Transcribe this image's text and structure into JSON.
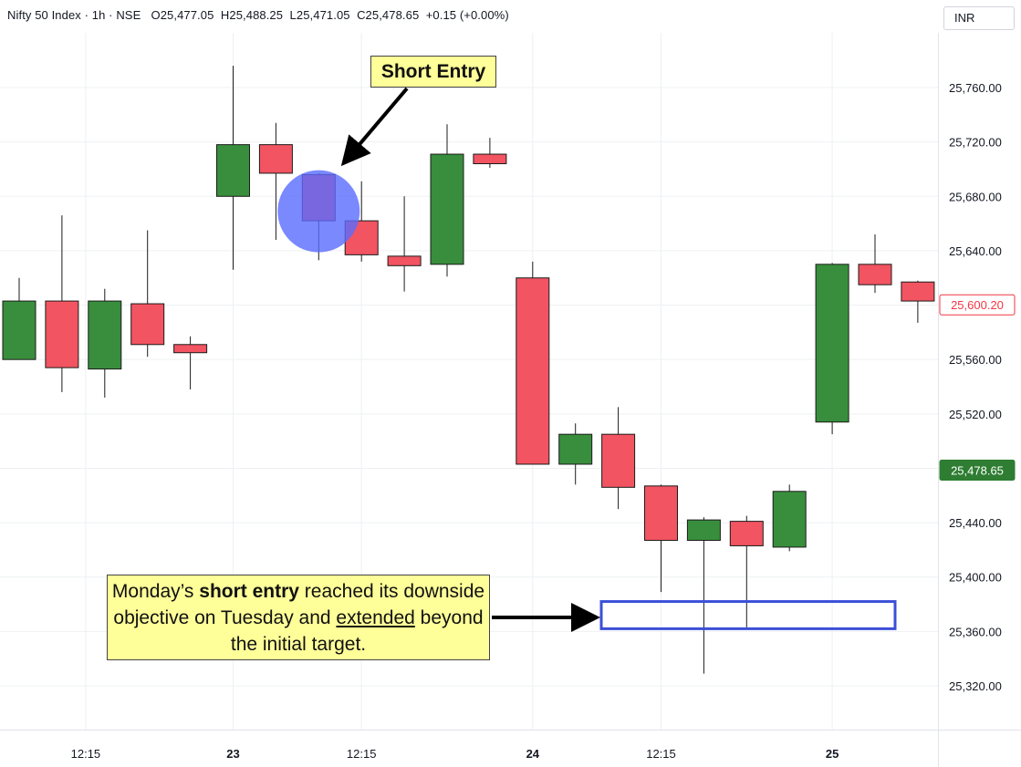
{
  "header": {
    "symbol": "Nifty 50 Index",
    "interval": "1h",
    "exchange": "NSE",
    "open": "O25,477.05",
    "high": "H25,488.25",
    "low": "L25,471.05",
    "close": "C25,478.65",
    "change": "+0.15 (+0.00%)",
    "separator": "·"
  },
  "currency": "INR",
  "annotations": {
    "short_entry": "Short Entry",
    "objective_p1": "Monday’s ",
    "objective_b1": "short entry",
    "objective_p2": " reached its downside objective on Tuesday and ",
    "objective_u1": "extended",
    "objective_p3": " beyond the initial target."
  },
  "chart_data": {
    "type": "candlestick",
    "ylim": [
      25300,
      25800
    ],
    "y_ticks": [
      25320,
      25360,
      25400,
      25440,
      25480,
      25520,
      25560,
      25600,
      25640,
      25680,
      25720,
      25760
    ],
    "y_tick_labels": [
      "25,320.00",
      "25,360.00",
      "25,400.00",
      "25,440.00",
      "25,480.00",
      "25,520.00",
      "25,560.00",
      "25,600.00",
      "25,640.00",
      "25,680.00",
      "25,720.00",
      "25,760.00"
    ],
    "x_labels": [
      {
        "index": 1,
        "label": "12:15",
        "bold": false
      },
      {
        "index": 5,
        "label": "23",
        "bold": true
      },
      {
        "index": 8,
        "label": "12:15",
        "bold": false
      },
      {
        "index": 12,
        "label": "24",
        "bold": true
      },
      {
        "index": 15,
        "label": "12:15",
        "bold": false
      },
      {
        "index": 19,
        "label": "25",
        "bold": true
      }
    ],
    "candles": [
      {
        "open": 25560,
        "high": 25620,
        "low": 25560,
        "close": 25603
      },
      {
        "open": 25603,
        "high": 25666,
        "low": 25536,
        "close": 25554
      },
      {
        "open": 25553,
        "high": 25612,
        "low": 25532,
        "close": 25603
      },
      {
        "open": 25601,
        "high": 25655,
        "low": 25562,
        "close": 25571
      },
      {
        "open": 25571,
        "high": 25577,
        "low": 25538,
        "close": 25565
      },
      {
        "open": 25680,
        "high": 25776,
        "low": 25626,
        "close": 25718
      },
      {
        "open": 25718,
        "high": 25734,
        "low": 25648,
        "close": 25697
      },
      {
        "open": 25696,
        "high": 25697,
        "low": 25633,
        "close": 25662
      },
      {
        "open": 25662,
        "high": 25691,
        "low": 25632,
        "close": 25637
      },
      {
        "open": 25636,
        "high": 25680,
        "low": 25610,
        "close": 25629
      },
      {
        "open": 25630,
        "high": 25733,
        "low": 25621,
        "close": 25711
      },
      {
        "open": 25711,
        "high": 25723,
        "low": 25701,
        "close": 25704
      },
      {
        "open": 25620,
        "high": 25632,
        "low": 25483,
        "close": 25483
      },
      {
        "open": 25483,
        "high": 25513,
        "low": 25468,
        "close": 25505
      },
      {
        "open": 25505,
        "high": 25525,
        "low": 25450,
        "close": 25466
      },
      {
        "open": 25467,
        "high": 25468,
        "low": 25389,
        "close": 25427
      },
      {
        "open": 25427,
        "high": 25444,
        "low": 25329,
        "close": 25442
      },
      {
        "open": 25441,
        "high": 25445,
        "low": 25363,
        "close": 25423
      },
      {
        "open": 25422,
        "high": 25468,
        "low": 25419,
        "close": 25463
      },
      {
        "open": 25514,
        "high": 25631,
        "low": 25505,
        "close": 25630
      },
      {
        "open": 25630,
        "high": 25652,
        "low": 25609,
        "close": 25615
      },
      {
        "open": 25617,
        "high": 25618,
        "low": 25587,
        "close": 25603
      }
    ],
    "price_labels": [
      {
        "value": 25600.2,
        "label": "25,600.20",
        "style": "outline",
        "color": "#f23645"
      },
      {
        "value": 25478.65,
        "label": "25,478.65",
        "style": "filled",
        "color": "#2e7d32"
      }
    ],
    "highlights": {
      "entry_circle_index": 7,
      "target_box": {
        "from_index": 14,
        "to_index": 21,
        "low": 25362,
        "high": 25382
      }
    },
    "colors": {
      "up": "#388e3c",
      "down": "#f25461",
      "circle": "#5a6bff",
      "box": "#3b4fd8",
      "grid": "#eef0f3"
    }
  }
}
